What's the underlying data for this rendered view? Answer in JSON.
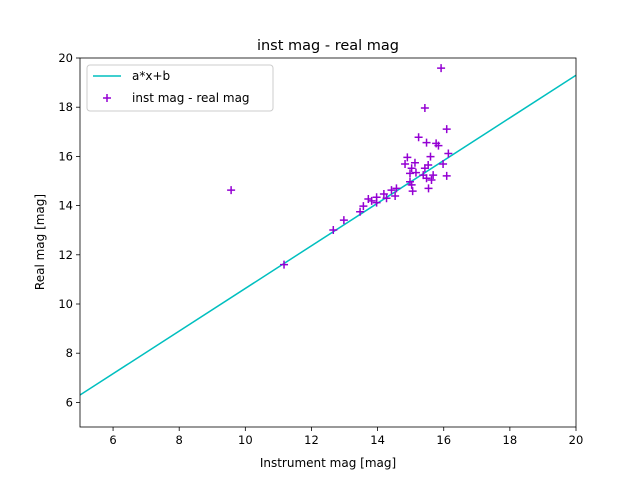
{
  "chart_data": {
    "type": "scatter",
    "title": "inst mag - real mag",
    "xlabel": "Instrument mag [mag]",
    "ylabel": "Real mag [mag]",
    "xlim": [
      5,
      20
    ],
    "ylim": [
      5,
      20
    ],
    "xticks": [
      6,
      8,
      10,
      12,
      14,
      16,
      18,
      20
    ],
    "yticks": [
      6,
      8,
      10,
      12,
      14,
      16,
      18,
      20
    ],
    "grid": false,
    "legend_placement": "upper-left",
    "series": [
      {
        "name": "a*x+b",
        "kind": "line",
        "color": "#00bfbf",
        "x": [
          5,
          20
        ],
        "y": [
          6.3,
          19.3
        ]
      },
      {
        "name": "inst mag - real mag",
        "kind": "scatter",
        "marker": "plus",
        "color": "#9400d3",
        "x": [
          16.09,
          15.24,
          15.48,
          15.77,
          15.84,
          16.14,
          15.6,
          14.9,
          14.83,
          15.13,
          15.98,
          15.53,
          15.03,
          15.43,
          14.98,
          15.16,
          15.38,
          15.68,
          16.09,
          15.48,
          15.63,
          14.98,
          15.03,
          15.54,
          15.06,
          14.57,
          14.42,
          14.53,
          14.19,
          14.27,
          13.97,
          13.72,
          13.82,
          13.97,
          13.57,
          13.47,
          12.98,
          12.66,
          9.57,
          11.17,
          15.92,
          15.43
        ],
        "y": [
          17.11,
          16.78,
          16.56,
          16.53,
          16.44,
          16.12,
          15.99,
          15.96,
          15.69,
          15.74,
          15.69,
          15.65,
          15.52,
          15.52,
          15.31,
          15.34,
          15.24,
          15.24,
          15.21,
          15.11,
          15.04,
          14.97,
          14.84,
          14.7,
          14.59,
          14.7,
          14.63,
          14.39,
          14.47,
          14.3,
          14.34,
          14.27,
          14.19,
          14.12,
          13.98,
          13.75,
          13.41,
          13.01,
          14.63,
          11.6,
          19.59,
          17.97
        ]
      }
    ]
  }
}
